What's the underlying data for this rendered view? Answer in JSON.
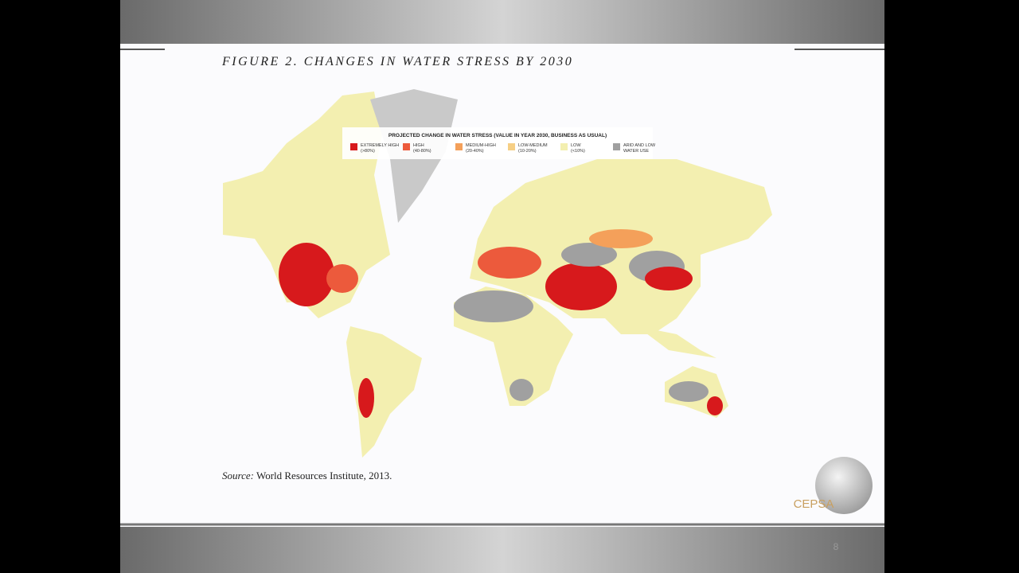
{
  "header": {
    "title": "FIGURE 2. CHANGES IN WATER STRESS BY 2030"
  },
  "legend": {
    "title": "PROJECTED CHANGE IN WATER STRESS (VALUE IN YEAR 2030, BUSINESS AS USUAL)",
    "items": [
      {
        "label": "EXTREMELY HIGH",
        "range": "(>80%)",
        "color": "#d7191c"
      },
      {
        "label": "HIGH",
        "range": "(40-80%)",
        "color": "#ec5a3c"
      },
      {
        "label": "MEDIUM-HIGH",
        "range": "(20-40%)",
        "color": "#f4a05a"
      },
      {
        "label": "LOW-MEDIUM",
        "range": "(10-20%)",
        "color": "#f6cf85"
      },
      {
        "label": "LOW",
        "range": "(<10%)",
        "color": "#f3efb0"
      },
      {
        "label": "ARID AND LOW",
        "range": "WATER USE",
        "color": "#a0a0a0"
      }
    ]
  },
  "source": {
    "label": "Source:",
    "text": "World Resources Institute, 2013."
  },
  "logo": {
    "text": "CEPSA"
  },
  "page_number": 8
}
